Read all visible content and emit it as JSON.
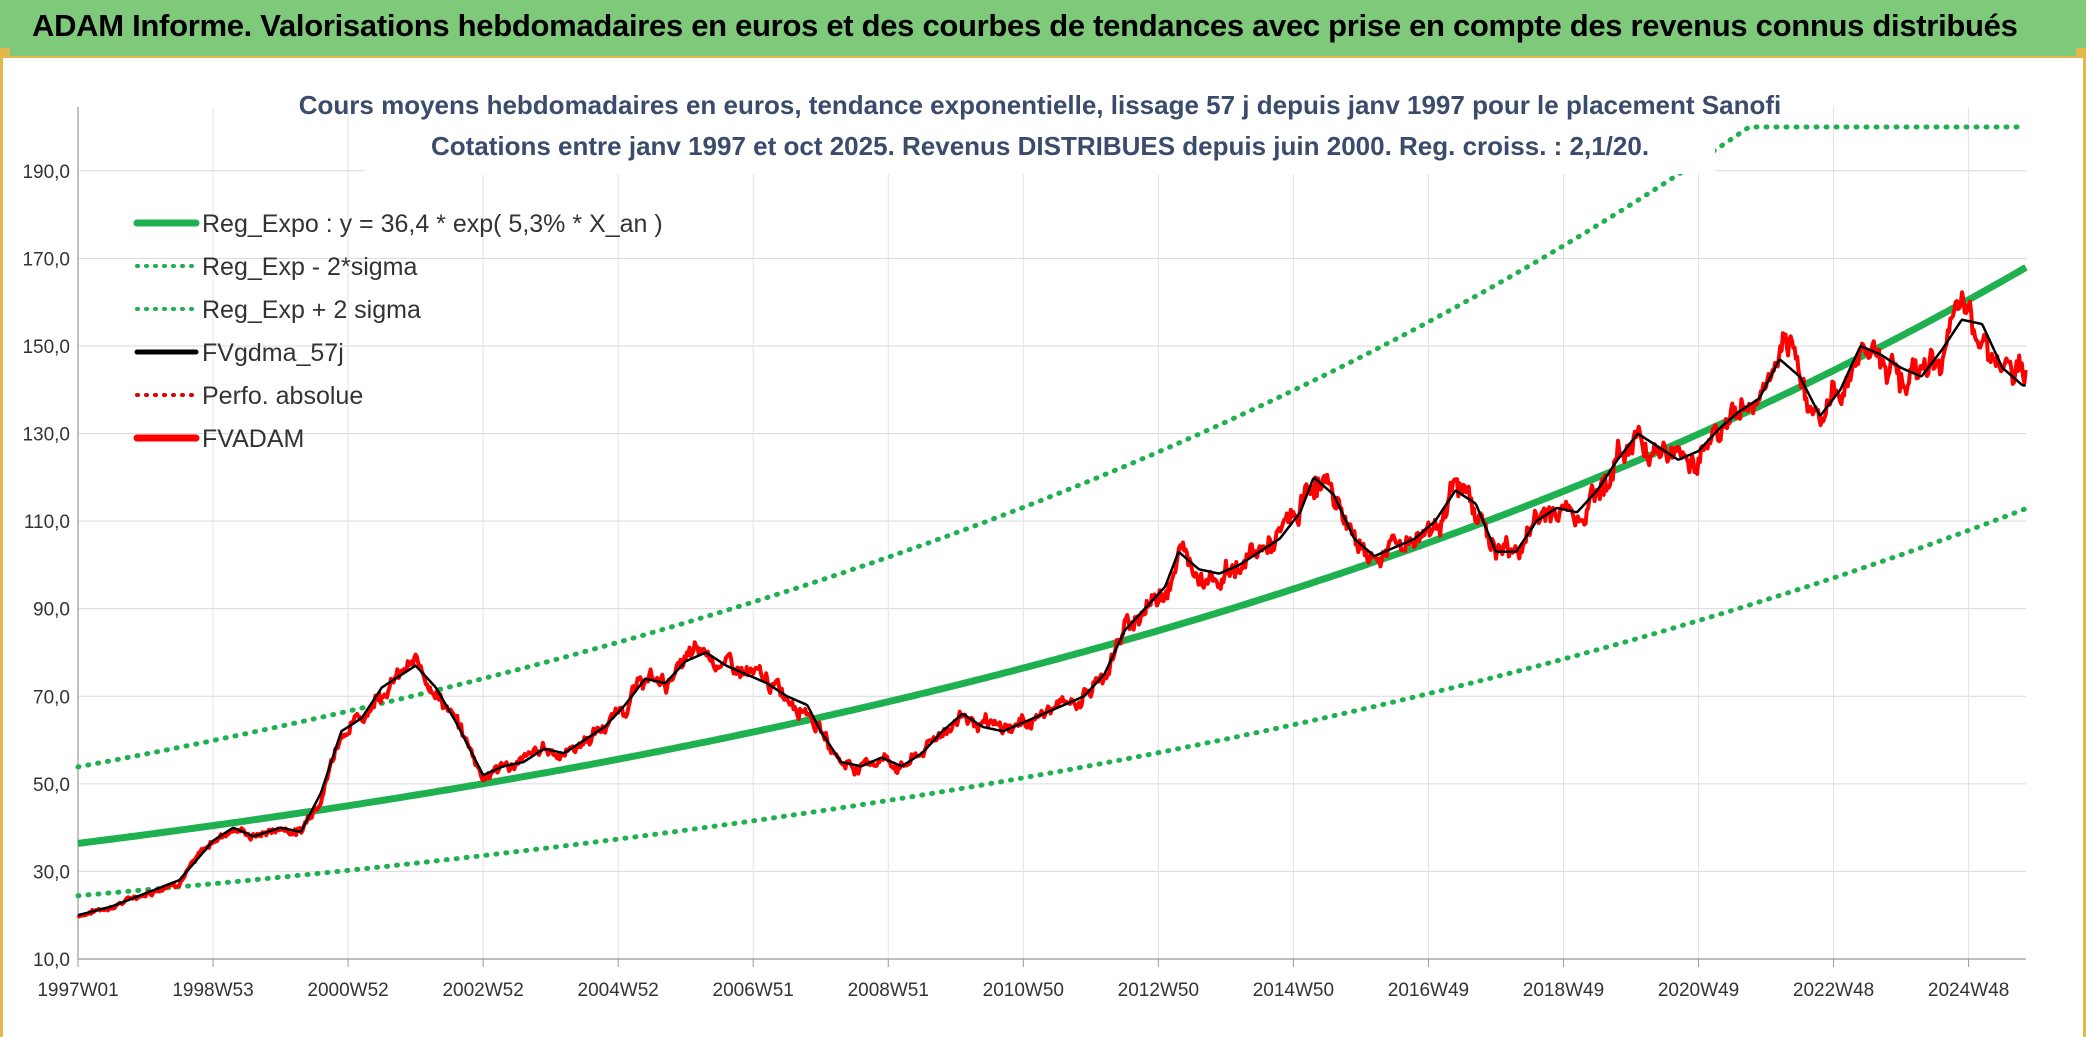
{
  "header": {
    "title": "ADAM Informe. Valorisations hebdomadaires en euros et des courbes de tendances avec prise en compte des revenus connus distribués"
  },
  "chart_data": {
    "type": "line",
    "title": "Cours moyens hebdomadaires en euros, tendance exponentielle, lissage 57 j depuis janv 1997 pour le placement Sanofi",
    "subtitle": "Cotations entre janv 1997 et oct 2025. Revenus DISTRIBUES depuis juin 2000. Reg. croiss. : 2,1/20.",
    "xlabel": "",
    "ylabel": "",
    "x_range": [
      1997.0,
      2025.85
    ],
    "ylim": [
      10,
      200
    ],
    "y_ticks": [
      "10,0",
      "30,0",
      "50,0",
      "70,0",
      "90,0",
      "110,0",
      "130,0",
      "150,0",
      "170,0",
      "190,0"
    ],
    "x_ticks": [
      {
        "label": "1997W01",
        "t": 1997.0
      },
      {
        "label": "1998W53",
        "t": 1999.0
      },
      {
        "label": "2000W52",
        "t": 2001.0
      },
      {
        "label": "2002W52",
        "t": 2003.0
      },
      {
        "label": "2004W52",
        "t": 2005.0
      },
      {
        "label": "2006W51",
        "t": 2007.0
      },
      {
        "label": "2008W51",
        "t": 2009.0
      },
      {
        "label": "2010W50",
        "t": 2011.0
      },
      {
        "label": "2012W50",
        "t": 2013.0
      },
      {
        "label": "2014W50",
        "t": 2015.0
      },
      {
        "label": "2016W49",
        "t": 2017.0
      },
      {
        "label": "2018W49",
        "t": 2019.0
      },
      {
        "label": "2020W49",
        "t": 2021.0
      },
      {
        "label": "2022W48",
        "t": 2023.0
      },
      {
        "label": "2024W48",
        "t": 2025.0
      }
    ],
    "grid": true,
    "legend_position": "top-left",
    "regression": {
      "a": 36.4,
      "rate": 0.053,
      "upper_cap": 200
    },
    "series": [
      {
        "name": "Reg_Expo : y = 36,4 * exp( 5,3% *  X_an )",
        "color": "#1fb04f",
        "style": "solid-thick",
        "kind": "reg"
      },
      {
        "name": "Reg_Exp - 2*sigma",
        "color": "#1fb04f",
        "style": "dotted",
        "kind": "reg_low"
      },
      {
        "name": "Reg_Exp + 2 sigma",
        "color": "#1fb04f",
        "style": "dotted",
        "kind": "reg_high"
      },
      {
        "name": "FVgdma_57j",
        "color": "#000000",
        "style": "solid",
        "kind": "smooth"
      },
      {
        "name": "Perfo. absolue",
        "color": "#e00000",
        "style": "dotted",
        "kind": "none"
      },
      {
        "name": "FVADAM",
        "color": "#ff0000",
        "style": "solid-thick",
        "kind": "price"
      }
    ],
    "price_points": [
      [
        1997.0,
        20
      ],
      [
        1997.5,
        22
      ],
      [
        1998.0,
        25
      ],
      [
        1998.5,
        28
      ],
      [
        1999.0,
        37
      ],
      [
        1999.3,
        40
      ],
      [
        1999.6,
        38
      ],
      [
        2000.0,
        40
      ],
      [
        2000.3,
        39
      ],
      [
        2000.6,
        48
      ],
      [
        2000.9,
        62
      ],
      [
        2001.2,
        65
      ],
      [
        2001.5,
        72
      ],
      [
        2001.8,
        75
      ],
      [
        2002.0,
        77
      ],
      [
        2002.3,
        72
      ],
      [
        2002.6,
        64
      ],
      [
        2002.8,
        58
      ],
      [
        2003.0,
        52
      ],
      [
        2003.3,
        54
      ],
      [
        2003.6,
        55
      ],
      [
        2003.9,
        58
      ],
      [
        2004.2,
        57
      ],
      [
        2004.5,
        60
      ],
      [
        2004.8,
        63
      ],
      [
        2005.1,
        68
      ],
      [
        2005.4,
        74
      ],
      [
        2005.7,
        73
      ],
      [
        2006.0,
        78
      ],
      [
        2006.3,
        80
      ],
      [
        2006.6,
        77
      ],
      [
        2006.9,
        75
      ],
      [
        2007.2,
        73
      ],
      [
        2007.5,
        70
      ],
      [
        2007.8,
        68
      ],
      [
        2008.0,
        62
      ],
      [
        2008.3,
        55
      ],
      [
        2008.6,
        54
      ],
      [
        2008.9,
        56
      ],
      [
        2009.2,
        54
      ],
      [
        2009.5,
        57
      ],
      [
        2009.8,
        62
      ],
      [
        2010.1,
        66
      ],
      [
        2010.4,
        63
      ],
      [
        2010.7,
        62
      ],
      [
        2011.0,
        64
      ],
      [
        2011.3,
        66
      ],
      [
        2011.6,
        68
      ],
      [
        2011.9,
        70
      ],
      [
        2012.2,
        75
      ],
      [
        2012.5,
        85
      ],
      [
        2012.8,
        90
      ],
      [
        2013.1,
        95
      ],
      [
        2013.3,
        103
      ],
      [
        2013.6,
        99
      ],
      [
        2013.9,
        98
      ],
      [
        2014.2,
        100
      ],
      [
        2014.5,
        103
      ],
      [
        2014.8,
        106
      ],
      [
        2015.1,
        112
      ],
      [
        2015.3,
        120
      ],
      [
        2015.6,
        116
      ],
      [
        2015.9,
        106
      ],
      [
        2016.2,
        102
      ],
      [
        2016.5,
        104
      ],
      [
        2016.8,
        106
      ],
      [
        2017.1,
        110
      ],
      [
        2017.4,
        117
      ],
      [
        2017.7,
        114
      ],
      [
        2018.0,
        103
      ],
      [
        2018.3,
        103
      ],
      [
        2018.6,
        110
      ],
      [
        2018.9,
        113
      ],
      [
        2019.2,
        112
      ],
      [
        2019.5,
        117
      ],
      [
        2019.8,
        124
      ],
      [
        2020.1,
        130
      ],
      [
        2020.4,
        127
      ],
      [
        2020.7,
        124
      ],
      [
        2021.0,
        126
      ],
      [
        2021.3,
        131
      ],
      [
        2021.6,
        135
      ],
      [
        2021.9,
        138
      ],
      [
        2022.2,
        147
      ],
      [
        2022.5,
        143
      ],
      [
        2022.8,
        134
      ],
      [
        2023.1,
        140
      ],
      [
        2023.4,
        150
      ],
      [
        2023.7,
        148
      ],
      [
        2024.0,
        145
      ],
      [
        2024.3,
        143
      ],
      [
        2024.6,
        149
      ],
      [
        2024.9,
        156
      ],
      [
        2025.2,
        155
      ],
      [
        2025.5,
        145
      ],
      [
        2025.8,
        141
      ]
    ]
  }
}
